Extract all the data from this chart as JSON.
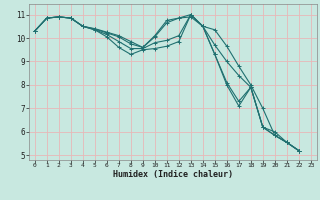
{
  "xlabel": "Humidex (Indice chaleur)",
  "xlim": [
    -0.5,
    23.5
  ],
  "ylim": [
    4.8,
    11.45
  ],
  "bg_color": "#c8e8e0",
  "grid_color": "#e8b8b8",
  "line_color": "#207070",
  "series": [
    [
      10.3,
      10.85,
      10.9,
      10.85,
      10.5,
      10.4,
      10.25,
      10.1,
      9.85,
      9.6,
      10.1,
      10.75,
      10.85,
      10.9,
      10.5,
      10.35,
      9.65,
      8.8,
      8.0,
      7.0,
      5.85,
      5.55,
      5.2
    ],
    [
      10.3,
      10.85,
      10.9,
      10.85,
      10.5,
      10.38,
      10.22,
      10.05,
      9.75,
      9.6,
      10.05,
      10.65,
      10.85,
      11.0,
      10.5,
      9.7,
      9.0,
      8.4,
      7.9,
      6.2,
      6.0,
      5.55,
      5.2
    ],
    [
      10.3,
      10.85,
      10.9,
      10.85,
      10.5,
      10.35,
      10.15,
      9.85,
      9.55,
      9.55,
      9.8,
      9.9,
      10.1,
      11.0,
      10.5,
      9.3,
      8.1,
      7.3,
      7.9,
      6.2,
      5.85,
      5.55,
      5.2
    ],
    [
      10.3,
      10.85,
      10.9,
      10.85,
      10.5,
      10.35,
      10.05,
      9.6,
      9.3,
      9.5,
      9.55,
      9.65,
      9.85,
      11.0,
      10.5,
      9.3,
      8.0,
      7.1,
      7.9,
      6.2,
      5.85,
      5.55,
      5.2
    ]
  ],
  "xticks": [
    0,
    1,
    2,
    3,
    4,
    5,
    6,
    7,
    8,
    9,
    10,
    11,
    12,
    13,
    14,
    15,
    16,
    17,
    18,
    19,
    20,
    21,
    22,
    23
  ],
  "yticks": [
    5,
    6,
    7,
    8,
    9,
    10,
    11
  ],
  "marker": "+"
}
